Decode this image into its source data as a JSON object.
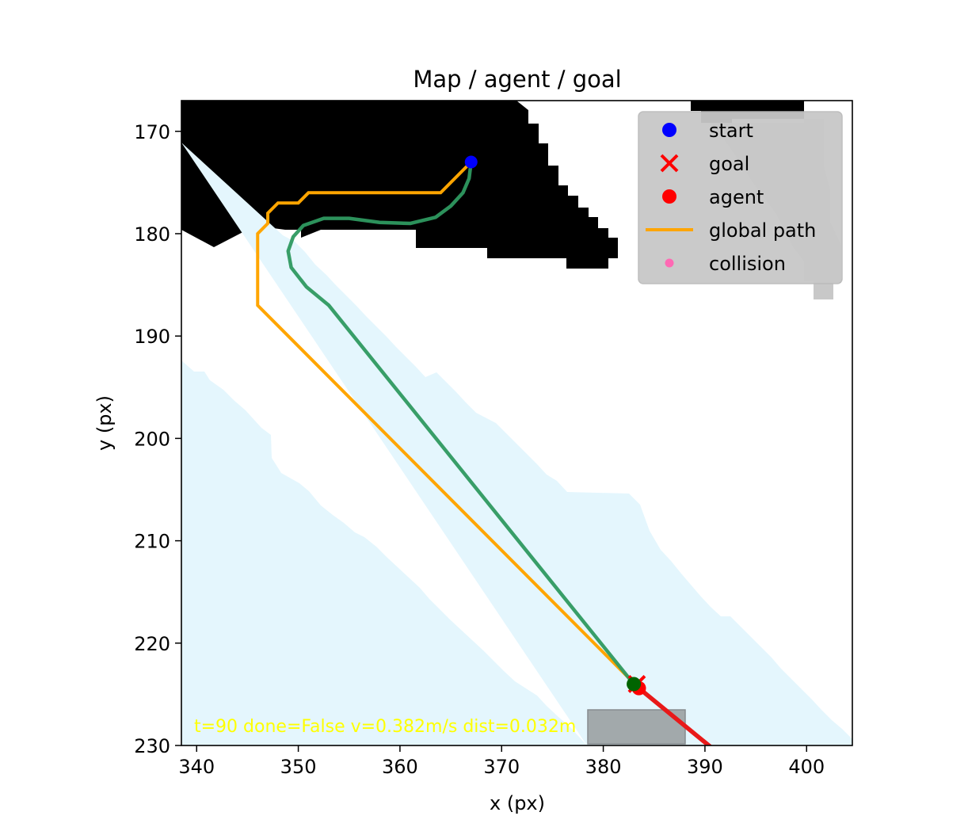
{
  "chart_data": {
    "type": "scatter",
    "title": "Map / agent / goal",
    "xlabel": "x (px)",
    "ylabel": "y (px)",
    "xlim": [
      338.5,
      404.5
    ],
    "ylim": [
      230,
      167
    ],
    "y_inverted": true,
    "xticks": [
      340,
      350,
      360,
      370,
      380,
      390,
      400
    ],
    "yticks": [
      170,
      180,
      190,
      200,
      210,
      220,
      230
    ],
    "grid": false,
    "legend": {
      "placement": "upper-right",
      "entries": [
        {
          "label": "start",
          "marker": "circle",
          "color": "#0000ff"
        },
        {
          "label": "goal",
          "marker": "x",
          "color": "#ff0000"
        },
        {
          "label": "agent",
          "marker": "circle",
          "color": "#ff0000"
        },
        {
          "label": "global path",
          "marker": "line",
          "color": "#ffa500"
        },
        {
          "label": "collision",
          "marker": "small-circle",
          "color": "#ff69b4"
        }
      ]
    },
    "status_text": "t=90 done=False v=0.382m/s dist=0.032m",
    "colors": {
      "obstacle": "#000000",
      "free": "#ffffff",
      "corridor": "#e4f6fd",
      "unknown": "#c8c8c8",
      "global_path": "#ffa500",
      "trajectory": "#2e9960",
      "heading": "#e81919",
      "agent_marker": "#006400"
    },
    "series": [
      {
        "name": "start",
        "kind": "point",
        "x": [
          367.0
        ],
        "y": [
          173.0
        ]
      },
      {
        "name": "goal",
        "kind": "point",
        "x": [
          383.3
        ],
        "y": [
          224.0
        ]
      },
      {
        "name": "agent",
        "kind": "point",
        "x": [
          383.5
        ],
        "y": [
          224.4
        ]
      },
      {
        "name": "global path",
        "kind": "line",
        "x": [
          367.0,
          364.0,
          351.0,
          350.0,
          348.0,
          347.0,
          347.0,
          346.0,
          346.0,
          346.0,
          383.5
        ],
        "y": [
          173.0,
          176.0,
          176.0,
          177.0,
          177.0,
          178.0,
          179.0,
          180.0,
          181.0,
          187.0,
          224.4
        ]
      },
      {
        "name": "",
        "kind": "line",
        "x": [
          367.0,
          366.8,
          366.2,
          365.0,
          363.5,
          361.0,
          358.0,
          355.0,
          352.5,
          350.5,
          349.5,
          349.0,
          349.3,
          350.8,
          353.0,
          383.0
        ],
        "y": [
          173.0,
          174.6,
          176.0,
          177.3,
          178.4,
          179.0,
          178.9,
          178.5,
          178.5,
          179.2,
          180.3,
          181.7,
          183.3,
          185.2,
          187.0,
          224.0
        ]
      },
      {
        "name": "",
        "kind": "point",
        "x": [
          383.0
        ],
        "y": [
          224.0
        ]
      },
      {
        "name": "",
        "kind": "line",
        "x": [
          383.5,
          391.0
        ],
        "y": [
          224.4,
          230.5
        ]
      }
    ]
  }
}
